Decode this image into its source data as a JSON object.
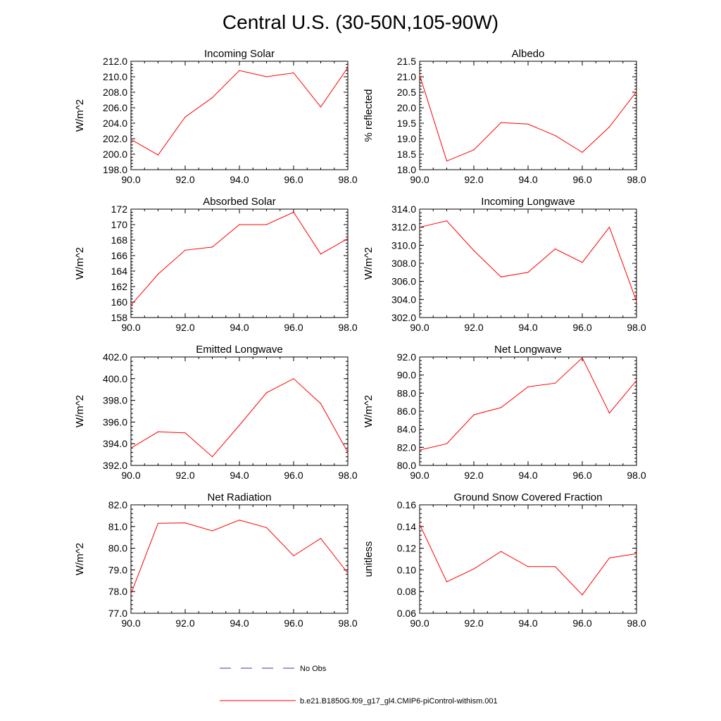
{
  "page": {
    "title": "Central U.S. (30-50N,105-90W)"
  },
  "colors": {
    "series": "#ff0000",
    "obs": "#3a3aa8",
    "axis": "#000000"
  },
  "legend": {
    "obs_label": "No Obs",
    "model_label": "b.e21.B1850G.f09_g17_gl4.CMIP6-piControl-withism.001"
  },
  "chart_data": [
    {
      "type": "line",
      "title": "Incoming Solar",
      "ylabel": "W/m^2",
      "x": [
        90,
        91,
        92,
        93,
        94,
        95,
        96,
        97,
        98
      ],
      "values": [
        201.9,
        199.9,
        204.8,
        207.3,
        210.8,
        210.0,
        210.5,
        206.1,
        211.2
      ],
      "xlim": [
        90,
        98
      ],
      "ylim": [
        198,
        212
      ],
      "xticks": [
        "90.0",
        "92.0",
        "94.0",
        "96.0",
        "98.0"
      ],
      "yticks": [
        "198.0",
        "200.0",
        "202.0",
        "204.0",
        "206.0",
        "208.0",
        "210.0",
        "212.0"
      ]
    },
    {
      "type": "line",
      "title": "Albedo",
      "ylabel": "% reflected",
      "x": [
        90,
        91,
        92,
        93,
        94,
        95,
        96,
        97,
        98
      ],
      "values": [
        21.05,
        18.28,
        18.64,
        19.52,
        19.47,
        19.1,
        18.56,
        19.38,
        20.52
      ],
      "xlim": [
        90,
        98
      ],
      "ylim": [
        18,
        21.5
      ],
      "xticks": [
        "90.0",
        "92.0",
        "94.0",
        "96.0",
        "98.0"
      ],
      "yticks": [
        "18.0",
        "18.5",
        "19.0",
        "19.5",
        "20.0",
        "20.5",
        "21.0",
        "21.5"
      ]
    },
    {
      "type": "line",
      "title": "Absorbed Solar",
      "ylabel": "W/m^2",
      "x": [
        90,
        91,
        92,
        93,
        94,
        95,
        96,
        97,
        98
      ],
      "values": [
        159.6,
        163.6,
        166.7,
        167.1,
        170.0,
        170.0,
        171.6,
        166.2,
        168.2
      ],
      "xlim": [
        90,
        98
      ],
      "ylim": [
        158,
        172
      ],
      "xticks": [
        "90.0",
        "92.0",
        "94.0",
        "96.0",
        "98.0"
      ],
      "yticks": [
        "158",
        "160",
        "162",
        "164",
        "166",
        "168",
        "170",
        "172"
      ]
    },
    {
      "type": "line",
      "title": "Incoming Longwave",
      "ylabel": "W/m^2",
      "x": [
        90,
        91,
        92,
        93,
        94,
        95,
        96,
        97,
        98
      ],
      "values": [
        312.0,
        312.7,
        309.4,
        306.5,
        307.0,
        309.6,
        308.1,
        312.0,
        303.8
      ],
      "xlim": [
        90,
        98
      ],
      "ylim": [
        302,
        314
      ],
      "xticks": [
        "90.0",
        "92.0",
        "94.0",
        "96.0",
        "98.0"
      ],
      "yticks": [
        "302.0",
        "304.0",
        "306.0",
        "308.0",
        "310.0",
        "312.0",
        "314.0"
      ]
    },
    {
      "type": "line",
      "title": "Emitted Longwave",
      "ylabel": "W/m^2",
      "x": [
        90,
        91,
        92,
        93,
        94,
        95,
        96,
        97,
        98
      ],
      "values": [
        393.6,
        395.1,
        395.0,
        392.8,
        395.7,
        398.7,
        400.0,
        397.7,
        393.2
      ],
      "xlim": [
        90,
        98
      ],
      "ylim": [
        392,
        402
      ],
      "xticks": [
        "90.0",
        "92.0",
        "94.0",
        "96.0",
        "98.0"
      ],
      "yticks": [
        "392.0",
        "394.0",
        "396.0",
        "398.0",
        "400.0",
        "402.0"
      ]
    },
    {
      "type": "line",
      "title": "Net Longwave",
      "ylabel": "W/m^2",
      "x": [
        90,
        91,
        92,
        93,
        94,
        95,
        96,
        97,
        98
      ],
      "values": [
        81.7,
        82.4,
        85.6,
        86.4,
        88.7,
        89.1,
        91.9,
        85.8,
        89.4
      ],
      "xlim": [
        90,
        98
      ],
      "ylim": [
        80,
        92
      ],
      "xticks": [
        "90.0",
        "92.0",
        "94.0",
        "96.0",
        "98.0"
      ],
      "yticks": [
        "80.0",
        "82.0",
        "84.0",
        "86.0",
        "88.0",
        "90.0",
        "92.0"
      ]
    },
    {
      "type": "line",
      "title": "Net Radiation",
      "ylabel": "W/m^2",
      "x": [
        90,
        91,
        92,
        93,
        94,
        95,
        96,
        97,
        98
      ],
      "values": [
        77.9,
        81.15,
        81.17,
        80.8,
        81.3,
        80.95,
        79.65,
        80.45,
        78.85
      ],
      "xlim": [
        90,
        98
      ],
      "ylim": [
        77,
        82
      ],
      "xticks": [
        "90.0",
        "92.0",
        "94.0",
        "96.0",
        "98.0"
      ],
      "yticks": [
        "77.0",
        "78.0",
        "79.0",
        "80.0",
        "81.0",
        "82.0"
      ]
    },
    {
      "type": "line",
      "title": "Ground Snow Covered Fraction",
      "ylabel": "unitless",
      "x": [
        90,
        91,
        92,
        93,
        94,
        95,
        96,
        97,
        98
      ],
      "values": [
        0.142,
        0.089,
        0.101,
        0.117,
        0.103,
        0.103,
        0.077,
        0.111,
        0.115
      ],
      "xlim": [
        90,
        98
      ],
      "ylim": [
        0.06,
        0.16
      ],
      "xticks": [
        "90.0",
        "92.0",
        "94.0",
        "96.0",
        "98.0"
      ],
      "yticks": [
        "0.06",
        "0.08",
        "0.10",
        "0.12",
        "0.14",
        "0.16"
      ]
    }
  ]
}
